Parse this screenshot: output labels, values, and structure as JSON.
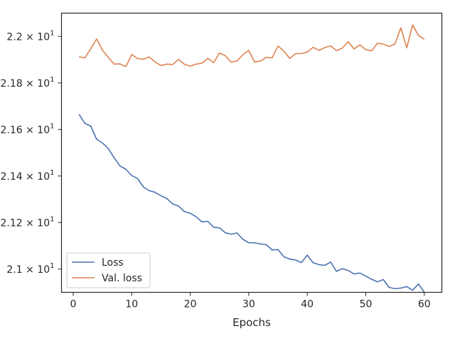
{
  "chart_data": {
    "type": "line",
    "title": "",
    "xlabel": "Epochs",
    "ylabel": "",
    "xlim": [
      -2,
      63
    ],
    "ylim": [
      20.9,
      22.1
    ],
    "xticks": [
      0,
      10,
      20,
      30,
      40,
      50,
      60
    ],
    "xtick_labels": [
      "0",
      "10",
      "20",
      "30",
      "40",
      "50",
      "60"
    ],
    "yticks": [
      21.0,
      21.2,
      21.4,
      21.6,
      21.8,
      22.0
    ],
    "ytick_labels": [
      {
        "mantissa": "2.1",
        "times": "×",
        "base": "10",
        "exp": "1"
      },
      {
        "mantissa": "2.12",
        "times": "×",
        "base": "10",
        "exp": "1"
      },
      {
        "mantissa": "2.14",
        "times": "×",
        "base": "10",
        "exp": "1"
      },
      {
        "mantissa": "2.16",
        "times": "×",
        "base": "10",
        "exp": "1"
      },
      {
        "mantissa": "2.18",
        "times": "×",
        "base": "10",
        "exp": "1"
      },
      {
        "mantissa": "2.2",
        "times": "×",
        "base": "10",
        "exp": "1"
      }
    ],
    "grid": false,
    "legend_position": "lower-left",
    "x": [
      1,
      2,
      3,
      4,
      5,
      6,
      7,
      8,
      9,
      10,
      11,
      12,
      13,
      14,
      15,
      16,
      17,
      18,
      19,
      20,
      21,
      22,
      23,
      24,
      25,
      26,
      27,
      28,
      29,
      30,
      31,
      32,
      33,
      34,
      35,
      36,
      37,
      38,
      39,
      40,
      41,
      42,
      43,
      44,
      45,
      46,
      47,
      48,
      49,
      50,
      51,
      52,
      53,
      54,
      55,
      56,
      57,
      58,
      59,
      60
    ],
    "series": [
      {
        "name": "Loss",
        "color": "#4c72b0",
        "values": [
          21.665,
          21.626,
          21.615,
          21.558,
          21.542,
          21.518,
          21.478,
          21.443,
          21.429,
          21.402,
          21.389,
          21.353,
          21.337,
          21.33,
          21.315,
          21.303,
          21.28,
          21.271,
          21.247,
          21.24,
          21.225,
          21.203,
          21.205,
          21.18,
          21.177,
          21.156,
          21.15,
          21.155,
          21.128,
          21.113,
          21.113,
          21.108,
          21.105,
          21.082,
          21.084,
          21.053,
          21.043,
          21.039,
          21.028,
          21.06,
          21.027,
          21.019,
          21.016,
          21.03,
          20.99,
          21.002,
          20.994,
          20.979,
          20.983,
          20.97,
          20.956,
          20.945,
          20.955,
          20.921,
          20.916,
          20.918,
          20.925,
          20.909,
          20.936,
          20.9
        ]
      },
      {
        "name": "Val. loss",
        "color": "#dd8452",
        "values": [
          21.912,
          21.908,
          21.947,
          21.989,
          21.941,
          21.91,
          21.881,
          21.882,
          21.87,
          21.922,
          21.905,
          21.902,
          21.912,
          21.89,
          21.875,
          21.881,
          21.879,
          21.901,
          21.88,
          21.872,
          21.881,
          21.885,
          21.906,
          21.887,
          21.929,
          21.917,
          21.889,
          21.895,
          21.921,
          21.94,
          21.89,
          21.894,
          21.91,
          21.908,
          21.959,
          21.937,
          21.905,
          21.926,
          21.926,
          21.933,
          21.953,
          21.94,
          21.952,
          21.959,
          21.939,
          21.95,
          21.977,
          21.946,
          21.964,
          21.943,
          21.938,
          21.971,
          21.967,
          21.957,
          21.968,
          22.037,
          21.951,
          22.049,
          22.004,
          21.988
        ]
      }
    ]
  }
}
